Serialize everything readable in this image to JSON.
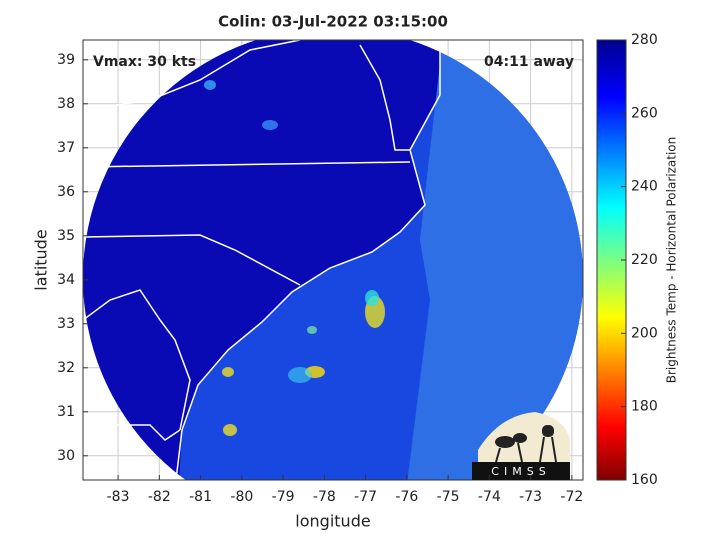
{
  "chart_data": {
    "type": "map",
    "title": "Colin: 03-Jul-2022 03:15:00",
    "annotations": [
      "Vmax: 30 kts",
      "04:11 away"
    ],
    "xlabel": "longitude",
    "ylabel": "latitude",
    "xlim": [
      -83.85,
      -71.73
    ],
    "xticks": [
      -83,
      -82,
      -81,
      -80,
      -79,
      -78,
      -77,
      -76,
      -75,
      -74,
      -73,
      -72
    ],
    "ylim": [
      29.45,
      39.45
    ],
    "yticks": [
      30,
      31,
      32,
      33,
      34,
      35,
      36,
      37,
      38,
      39
    ],
    "grid": true,
    "colorbar": {
      "label": "Brightness Temp - Horizontal Polarization",
      "lim": [
        160,
        280
      ],
      "ticks": [
        160,
        180,
        200,
        220,
        240,
        260,
        280
      ]
    }
  },
  "logo": {
    "text": "CIMSS"
  }
}
